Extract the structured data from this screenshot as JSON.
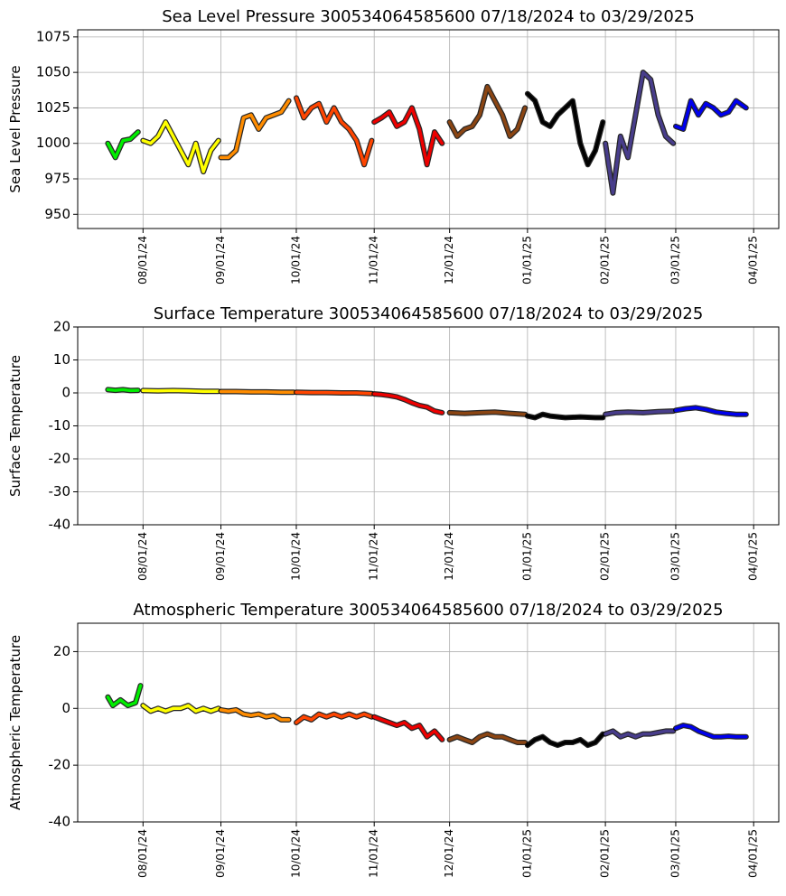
{
  "chart_data": [
    {
      "type": "line",
      "title": "Sea Level Pressure 300534064585600  07/18/2024 to 03/29/2025",
      "y_label": "Sea Level Pressure",
      "xlim": [
        "2024-07-06",
        "2025-04-11"
      ],
      "ylim": [
        940,
        1080
      ],
      "yticks": [
        950,
        975,
        1000,
        1025,
        1050,
        1075
      ],
      "grid": true,
      "xticks": [
        {
          "value": "2024-08-01",
          "label": "08/01/24"
        },
        {
          "value": "2024-09-01",
          "label": "09/01/24"
        },
        {
          "value": "2024-10-01",
          "label": "10/01/24"
        },
        {
          "value": "2024-11-01",
          "label": "11/01/24"
        },
        {
          "value": "2024-12-01",
          "label": "12/01/24"
        },
        {
          "value": "2025-01-01",
          "label": "01/01/25"
        },
        {
          "value": "2025-02-01",
          "label": "02/01/25"
        },
        {
          "value": "2025-03-01",
          "label": "03/01/25"
        },
        {
          "value": "2025-04-01",
          "label": "04/01/25"
        }
      ],
      "series": [
        {
          "color": "#00ee00",
          "x": [
            "2024-07-18",
            "2024-07-21",
            "2024-07-24",
            "2024-07-27",
            "2024-07-30"
          ],
          "values": [
            1000,
            990,
            1002,
            1003,
            1008
          ]
        },
        {
          "color": "#ffff00",
          "x": [
            "2024-08-01",
            "2024-08-04",
            "2024-08-07",
            "2024-08-10",
            "2024-08-13",
            "2024-08-16",
            "2024-08-19",
            "2024-08-22",
            "2024-08-25",
            "2024-08-28",
            "2024-08-31"
          ],
          "values": [
            1002,
            1000,
            1005,
            1015,
            1005,
            995,
            985,
            1000,
            980,
            995,
            1002
          ]
        },
        {
          "color": "#ff8c00",
          "x": [
            "2024-09-01",
            "2024-09-04",
            "2024-09-07",
            "2024-09-10",
            "2024-09-13",
            "2024-09-16",
            "2024-09-19",
            "2024-09-22",
            "2024-09-25",
            "2024-09-28"
          ],
          "values": [
            990,
            990,
            995,
            1018,
            1020,
            1010,
            1018,
            1020,
            1022,
            1030
          ]
        },
        {
          "color": "#ff4500",
          "x": [
            "2024-10-01",
            "2024-10-04",
            "2024-10-07",
            "2024-10-10",
            "2024-10-13",
            "2024-10-16",
            "2024-10-19",
            "2024-10-22",
            "2024-10-25",
            "2024-10-28",
            "2024-10-31"
          ],
          "values": [
            1032,
            1018,
            1025,
            1028,
            1015,
            1025,
            1015,
            1010,
            1002,
            985,
            1002
          ]
        },
        {
          "color": "#ee0000",
          "x": [
            "2024-11-01",
            "2024-11-04",
            "2024-11-07",
            "2024-11-10",
            "2024-11-13",
            "2024-11-16",
            "2024-11-19",
            "2024-11-22",
            "2024-11-25",
            "2024-11-28"
          ],
          "values": [
            1015,
            1018,
            1022,
            1012,
            1015,
            1025,
            1010,
            985,
            1008,
            1000
          ]
        },
        {
          "color": "#8b4513",
          "x": [
            "2024-12-01",
            "2024-12-04",
            "2024-12-07",
            "2024-12-10",
            "2024-12-13",
            "2024-12-16",
            "2024-12-19",
            "2024-12-22",
            "2024-12-25",
            "2024-12-28",
            "2024-12-31"
          ],
          "values": [
            1015,
            1005,
            1010,
            1012,
            1020,
            1040,
            1030,
            1020,
            1005,
            1010,
            1025
          ]
        },
        {
          "color": "#000000",
          "x": [
            "2025-01-01",
            "2025-01-04",
            "2025-01-07",
            "2025-01-10",
            "2025-01-13",
            "2025-01-16",
            "2025-01-19",
            "2025-01-22",
            "2025-01-25",
            "2025-01-28",
            "2025-01-31"
          ],
          "values": [
            1035,
            1030,
            1015,
            1012,
            1020,
            1025,
            1030,
            1000,
            985,
            995,
            1015
          ]
        },
        {
          "color": "#483d8b",
          "x": [
            "2025-02-01",
            "2025-02-04",
            "2025-02-07",
            "2025-02-10",
            "2025-02-13",
            "2025-02-16",
            "2025-02-19",
            "2025-02-22",
            "2025-02-25",
            "2025-02-28"
          ],
          "values": [
            1000,
            965,
            1005,
            990,
            1020,
            1050,
            1045,
            1020,
            1005,
            1000
          ]
        },
        {
          "color": "#0000ee",
          "x": [
            "2025-03-01",
            "2025-03-04",
            "2025-03-07",
            "2025-03-10",
            "2025-03-13",
            "2025-03-16",
            "2025-03-19",
            "2025-03-22",
            "2025-03-25",
            "2025-03-29"
          ],
          "values": [
            1012,
            1010,
            1030,
            1020,
            1028,
            1025,
            1020,
            1022,
            1030,
            1025
          ]
        }
      ]
    },
    {
      "type": "line",
      "title": "Surface Temperature 300534064585600  07/18/2024 to 03/29/2025",
      "y_label": "Surface Temperature",
      "xlim": [
        "2024-07-06",
        "2025-04-11"
      ],
      "ylim": [
        -40,
        20
      ],
      "yticks": [
        -40,
        -30,
        -20,
        -10,
        0,
        10,
        20
      ],
      "grid": true,
      "xticks": [
        {
          "value": "2024-08-01",
          "label": "08/01/24"
        },
        {
          "value": "2024-09-01",
          "label": "09/01/24"
        },
        {
          "value": "2024-10-01",
          "label": "10/01/24"
        },
        {
          "value": "2024-11-01",
          "label": "11/01/24"
        },
        {
          "value": "2024-12-01",
          "label": "12/01/24"
        },
        {
          "value": "2025-01-01",
          "label": "01/01/25"
        },
        {
          "value": "2025-02-01",
          "label": "02/01/25"
        },
        {
          "value": "2025-03-01",
          "label": "03/01/25"
        },
        {
          "value": "2025-04-01",
          "label": "04/01/25"
        }
      ],
      "series": [
        {
          "color": "#00ee00",
          "x": [
            "2024-07-18",
            "2024-07-21",
            "2024-07-24",
            "2024-07-27",
            "2024-07-30"
          ],
          "values": [
            1,
            0.8,
            1,
            0.7,
            0.8
          ]
        },
        {
          "color": "#ffff00",
          "x": [
            "2024-08-01",
            "2024-08-07",
            "2024-08-13",
            "2024-08-19",
            "2024-08-25",
            "2024-08-31"
          ],
          "values": [
            0.7,
            0.6,
            0.7,
            0.6,
            0.5,
            0.5
          ]
        },
        {
          "color": "#ff8c00",
          "x": [
            "2024-09-01",
            "2024-09-07",
            "2024-09-13",
            "2024-09-19",
            "2024-09-25",
            "2024-09-30"
          ],
          "values": [
            0.4,
            0.4,
            0.3,
            0.3,
            0.2,
            0.2
          ]
        },
        {
          "color": "#ff4500",
          "x": [
            "2024-10-01",
            "2024-10-07",
            "2024-10-13",
            "2024-10-19",
            "2024-10-25",
            "2024-10-31"
          ],
          "values": [
            0.2,
            0.1,
            0.1,
            0,
            0,
            -0.2
          ]
        },
        {
          "color": "#ee0000",
          "x": [
            "2024-11-01",
            "2024-11-04",
            "2024-11-07",
            "2024-11-10",
            "2024-11-13",
            "2024-11-16",
            "2024-11-19",
            "2024-11-22",
            "2024-11-25",
            "2024-11-28"
          ],
          "values": [
            -0.3,
            -0.5,
            -0.8,
            -1.2,
            -2,
            -3,
            -3.8,
            -4.3,
            -5.5,
            -6
          ]
        },
        {
          "color": "#8b4513",
          "x": [
            "2024-12-01",
            "2024-12-07",
            "2024-12-13",
            "2024-12-19",
            "2024-12-25",
            "2024-12-31"
          ],
          "values": [
            -6,
            -6.2,
            -6,
            -5.8,
            -6.2,
            -6.5
          ]
        },
        {
          "color": "#000000",
          "x": [
            "2025-01-01",
            "2025-01-04",
            "2025-01-07",
            "2025-01-10",
            "2025-01-16",
            "2025-01-22",
            "2025-01-28",
            "2025-01-31"
          ],
          "values": [
            -7,
            -7.5,
            -6.5,
            -7,
            -7.5,
            -7.3,
            -7.5,
            -7.5
          ]
        },
        {
          "color": "#483d8b",
          "x": [
            "2025-02-01",
            "2025-02-05",
            "2025-02-10",
            "2025-02-16",
            "2025-02-22",
            "2025-02-28"
          ],
          "values": [
            -6.5,
            -6,
            -5.8,
            -6,
            -5.7,
            -5.5
          ]
        },
        {
          "color": "#0000ee",
          "x": [
            "2025-03-01",
            "2025-03-05",
            "2025-03-09",
            "2025-03-13",
            "2025-03-17",
            "2025-03-21",
            "2025-03-25",
            "2025-03-29"
          ],
          "values": [
            -5.3,
            -4.8,
            -4.5,
            -5,
            -5.8,
            -6.2,
            -6.5,
            -6.5
          ]
        }
      ]
    },
    {
      "type": "line",
      "title": "Atmospheric Temperature 300534064585600  07/18/2024 to 03/29/2025",
      "y_label": "Atmospheric Temperature",
      "xlim": [
        "2024-07-06",
        "2025-04-11"
      ],
      "ylim": [
        -40,
        30
      ],
      "yticks": [
        -40,
        -20,
        0,
        20
      ],
      "grid": true,
      "xticks": [
        {
          "value": "2024-08-01",
          "label": "08/01/24"
        },
        {
          "value": "2024-09-01",
          "label": "09/01/24"
        },
        {
          "value": "2024-10-01",
          "label": "10/01/24"
        },
        {
          "value": "2024-11-01",
          "label": "11/01/24"
        },
        {
          "value": "2024-12-01",
          "label": "12/01/24"
        },
        {
          "value": "2025-01-01",
          "label": "01/01/25"
        },
        {
          "value": "2025-02-01",
          "label": "02/01/25"
        },
        {
          "value": "2025-03-01",
          "label": "03/01/25"
        },
        {
          "value": "2025-04-01",
          "label": "04/01/25"
        }
      ],
      "series": [
        {
          "color": "#00ee00",
          "x": [
            "2024-07-18",
            "2024-07-20",
            "2024-07-23",
            "2024-07-26",
            "2024-07-29",
            "2024-07-31"
          ],
          "values": [
            4,
            1,
            3,
            1,
            2,
            8
          ]
        },
        {
          "color": "#ffff00",
          "x": [
            "2024-08-01",
            "2024-08-04",
            "2024-08-07",
            "2024-08-10",
            "2024-08-13",
            "2024-08-16",
            "2024-08-19",
            "2024-08-22",
            "2024-08-25",
            "2024-08-28",
            "2024-08-31"
          ],
          "values": [
            1,
            -1,
            0,
            -1,
            0,
            0,
            1,
            -1,
            0,
            -1,
            0
          ]
        },
        {
          "color": "#ff8c00",
          "x": [
            "2024-09-01",
            "2024-09-04",
            "2024-09-07",
            "2024-09-10",
            "2024-09-13",
            "2024-09-16",
            "2024-09-19",
            "2024-09-22",
            "2024-09-25",
            "2024-09-28"
          ],
          "values": [
            -0.5,
            -1,
            -0.5,
            -2,
            -2.5,
            -2,
            -3,
            -2.5,
            -4,
            -4
          ]
        },
        {
          "color": "#ff4500",
          "x": [
            "2024-10-01",
            "2024-10-04",
            "2024-10-07",
            "2024-10-10",
            "2024-10-13",
            "2024-10-16",
            "2024-10-19",
            "2024-10-22",
            "2024-10-25",
            "2024-10-28",
            "2024-10-31"
          ],
          "values": [
            -5,
            -3,
            -4,
            -2,
            -3,
            -2,
            -3,
            -2,
            -3,
            -2,
            -3
          ]
        },
        {
          "color": "#ee0000",
          "x": [
            "2024-11-01",
            "2024-11-04",
            "2024-11-07",
            "2024-11-10",
            "2024-11-13",
            "2024-11-16",
            "2024-11-19",
            "2024-11-22",
            "2024-11-25",
            "2024-11-28"
          ],
          "values": [
            -3,
            -4,
            -5,
            -6,
            -5,
            -7,
            -6,
            -10,
            -8,
            -11
          ]
        },
        {
          "color": "#8b4513",
          "x": [
            "2024-12-01",
            "2024-12-04",
            "2024-12-07",
            "2024-12-10",
            "2024-12-13",
            "2024-12-16",
            "2024-12-19",
            "2024-12-22",
            "2024-12-25",
            "2024-12-28",
            "2024-12-31"
          ],
          "values": [
            -11,
            -10,
            -11,
            -12,
            -10,
            -9,
            -10,
            -10,
            -11,
            -12,
            -12
          ]
        },
        {
          "color": "#000000",
          "x": [
            "2025-01-01",
            "2025-01-04",
            "2025-01-07",
            "2025-01-10",
            "2025-01-13",
            "2025-01-16",
            "2025-01-19",
            "2025-01-22",
            "2025-01-25",
            "2025-01-28",
            "2025-01-31"
          ],
          "values": [
            -13,
            -11,
            -10,
            -12,
            -13,
            -12,
            -12,
            -11,
            -13,
            -12,
            -9
          ]
        },
        {
          "color": "#483d8b",
          "x": [
            "2025-02-01",
            "2025-02-04",
            "2025-02-07",
            "2025-02-10",
            "2025-02-13",
            "2025-02-16",
            "2025-02-19",
            "2025-02-22",
            "2025-02-25",
            "2025-02-28"
          ],
          "values": [
            -9,
            -8,
            -10,
            -9,
            -10,
            -9,
            -9,
            -8.5,
            -8,
            -8
          ]
        },
        {
          "color": "#0000ee",
          "x": [
            "2025-03-01",
            "2025-03-04",
            "2025-03-07",
            "2025-03-10",
            "2025-03-13",
            "2025-03-16",
            "2025-03-19",
            "2025-03-22",
            "2025-03-25",
            "2025-03-29"
          ],
          "values": [
            -7,
            -6,
            -6.5,
            -8,
            -9,
            -10,
            -10,
            -9.8,
            -10,
            -10
          ]
        }
      ]
    }
  ]
}
